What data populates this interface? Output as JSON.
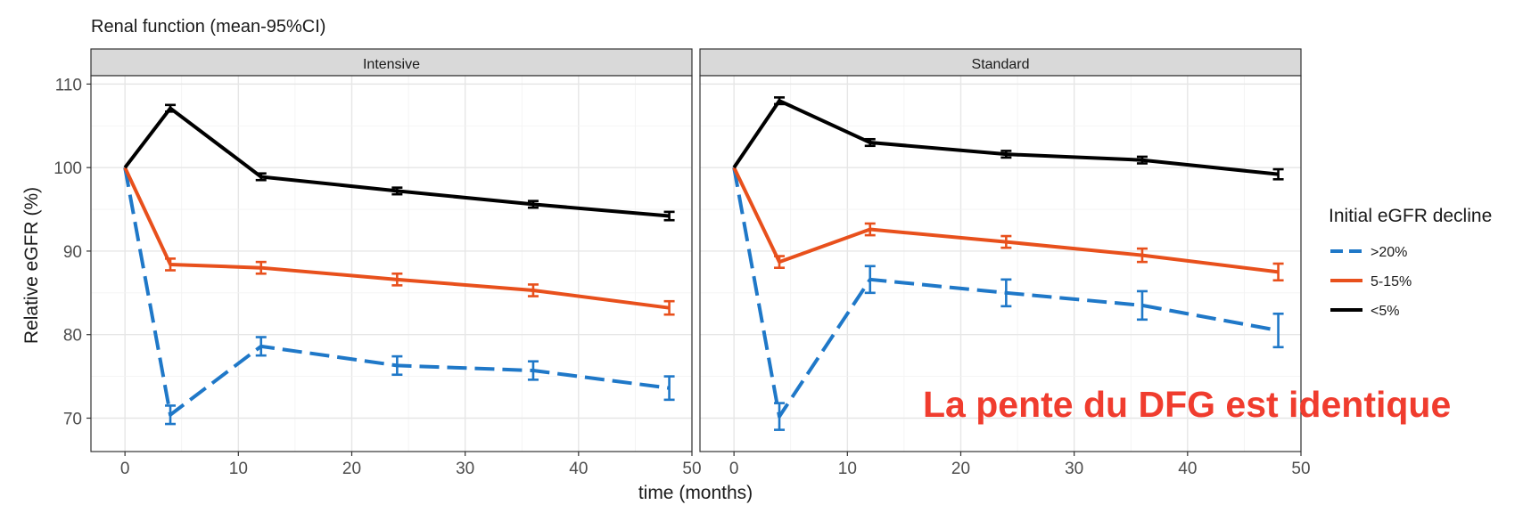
{
  "chart_data": {
    "type": "line",
    "title": "Renal function (mean-95%CI)",
    "xlabel": "time (months)",
    "ylabel": "Relative eGFR (%)",
    "xlim": [
      -3,
      50
    ],
    "ylim": [
      66,
      111
    ],
    "xticks": [
      0,
      10,
      20,
      30,
      40,
      50
    ],
    "yticks": [
      70,
      80,
      90,
      100,
      110
    ],
    "grid": true,
    "x": [
      0,
      4,
      12,
      24,
      36,
      48
    ],
    "legend": {
      "title": "Initial eGFR decline",
      "placement": "right",
      "entries": [
        {
          "label": ">20%",
          "color": "#1f78c8",
          "dash": true
        },
        {
          "label": "5-15%",
          "color": "#e8501c",
          "dash": false
        },
        {
          "label": "<5%",
          "color": "#000000",
          "dash": false
        }
      ]
    },
    "panels": [
      {
        "name": "Intensive",
        "series": [
          {
            "name": ">20%",
            "color": "#1f78c8",
            "dash": true,
            "values": [
              100,
              70.4,
              78.6,
              76.3,
              75.7,
              73.6
            ],
            "err": [
              0,
              1.1,
              1.1,
              1.1,
              1.1,
              1.4
            ]
          },
          {
            "name": "5-15%",
            "color": "#e8501c",
            "dash": false,
            "values": [
              100,
              88.4,
              88.0,
              86.6,
              85.3,
              83.2
            ],
            "err": [
              0,
              0.7,
              0.7,
              0.7,
              0.7,
              0.8
            ]
          },
          {
            "name": "<5%",
            "color": "#000000",
            "dash": false,
            "values": [
              100,
              107.1,
              98.9,
              97.2,
              95.6,
              94.2
            ],
            "err": [
              0,
              0.4,
              0.4,
              0.4,
              0.4,
              0.5
            ]
          }
        ]
      },
      {
        "name": "Standard",
        "series": [
          {
            "name": ">20%",
            "color": "#1f78c8",
            "dash": true,
            "values": [
              100,
              70.2,
              86.6,
              85.0,
              83.5,
              80.5
            ],
            "err": [
              0,
              1.6,
              1.6,
              1.6,
              1.7,
              2.0
            ]
          },
          {
            "name": "5-15%",
            "color": "#e8501c",
            "dash": false,
            "values": [
              100,
              88.7,
              92.6,
              91.1,
              89.5,
              87.5
            ],
            "err": [
              0,
              0.7,
              0.7,
              0.7,
              0.8,
              1.0
            ]
          },
          {
            "name": "<5%",
            "color": "#000000",
            "dash": false,
            "values": [
              100,
              108.0,
              103.0,
              101.6,
              100.9,
              99.2
            ],
            "err": [
              0,
              0.4,
              0.4,
              0.4,
              0.4,
              0.6
            ]
          }
        ]
      }
    ],
    "annotation": "La pente du DFG est identique"
  }
}
